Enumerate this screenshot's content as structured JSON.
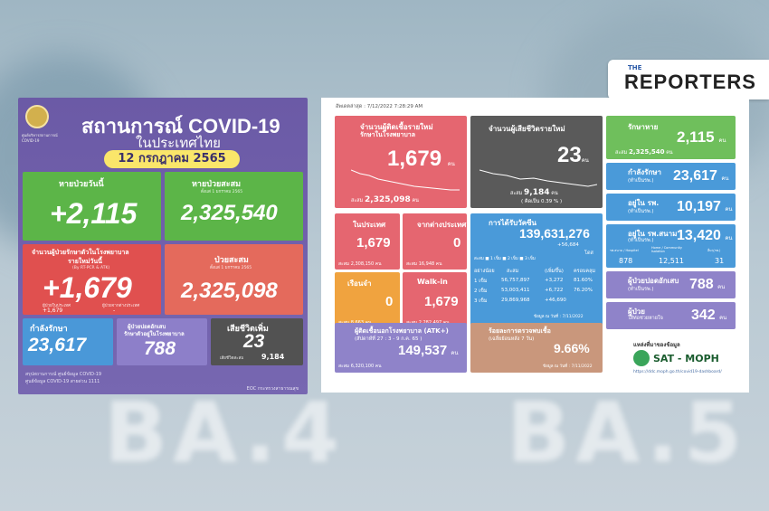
{
  "background": {
    "text_left": "BA.4",
    "text_right": "BA.5"
  },
  "logo": {
    "the": "THE",
    "name": "REPORTERS"
  },
  "left": {
    "crest_caption": "ศูนย์บริหารสถานการณ์ COVID-19",
    "title": "สถานการณ์ COVID-19",
    "subtitle": "ในประเทศไทย",
    "date": "12 กรกฎาคม 2565",
    "recovered_today": {
      "label": "หายป่วยวันนี้",
      "value": "+2,115"
    },
    "recovered_total": {
      "label": "หายป่วยสะสม",
      "note": "ตั้งแต่ 1 มกราคม 2565",
      "value": "2,325,540"
    },
    "new_hosp": {
      "label": "จำนวนผู้ป่วยรักษาตัวในโรงพยาบาล",
      "label2": "รายใหม่วันนี้",
      "note": "(By RT-PCR & ATK)",
      "value": "+1,679",
      "sub1_label": "ผู้ป่วยในประเทศ",
      "sub1": "+1,679",
      "sub2_label": "ผู้ป่วยจากต่างประเทศ",
      "sub2": "-"
    },
    "cum_cases": {
      "label": "ป่วยสะสม",
      "note": "ตั้งแต่ 1 มกราคม 2565",
      "value": "2,325,098"
    },
    "treating": {
      "label": "กำลังรักษา",
      "value": "23,617"
    },
    "atk_home": {
      "label": "ผู้ป่วยปอดอักเสบ",
      "label2": "รักษาตัวอยู่ในโรงพยาบาล",
      "value": "788"
    },
    "deaths": {
      "label": "เสียชีวิตเพิ่ม",
      "note": "เสียชีวิตสะสม",
      "value": "23",
      "cum": "9,184"
    },
    "footer1": "สรุปสถานการณ์ ศูนย์ข้อมูล COVID-19",
    "footer2": "ศูนย์ข้อมูล COVID-19   สายด่วน 1111",
    "footer3": "EOC กระทรวงสาธารณสุข"
  },
  "right": {
    "updated": "อัพเดตล่าสุด : 7/12/2022 7:28:29 AM",
    "case": {
      "title": "จำนวนผู้ติดเชื้อรายใหม่",
      "sub": "รักษาในโรงพยาบาล",
      "value": "1,679",
      "unit": "คน",
      "cum_label": "สะสม",
      "cum": "2,325,098",
      "cum_unit": "คน"
    },
    "death": {
      "title": "จำนวนผู้เสียชีวิตรายใหม่",
      "value": "23",
      "unit": "คน",
      "cum_label": "สะสม",
      "cum": "9,184",
      "cum_unit": "คน",
      "pct_label": "( คิดเป็น",
      "pct": "0.39 % )"
    },
    "heal": {
      "title": "รักษาหาย",
      "value": "2,115",
      "unit": "คน",
      "cum_label": "สะสม",
      "cum": "2,325,540",
      "cum_unit": "คน"
    },
    "treat": {
      "title": "กำลังรักษา",
      "sub": "(ทำเป็นรพ.)",
      "value": "23,617",
      "unit": "คน"
    },
    "hosp": {
      "title": "อยู่ใน รพ.",
      "sub": "(ทำเป็นรพ.)",
      "value": "10,197",
      "unit": "คน"
    },
    "field": {
      "title": "อยู่ใน รพ.สนาม",
      "sub": "(ทำเป็นรพ.)",
      "value": "13,420",
      "unit": "คน",
      "c1_label": "รพ.สนาม / Hospitel",
      "c1": "878",
      "c2_label": "Home / Community Isolation",
      "c2": "12,511",
      "c3_label": "อื่นๆ(รพ.)",
      "c3": "31"
    },
    "atk": {
      "title": "ผู้ป่วยปอดอักเสบ",
      "sub": "(ทำเป็นรพ.)",
      "value": "788",
      "unit": "คน"
    },
    "home": {
      "title": "ผู้ป่วย",
      "sub": "ใส่ท่อช่วยหายใจ",
      "value": "342",
      "unit": "คน"
    },
    "dom": {
      "title": "ในประเทศ",
      "value": "1,679",
      "cum_label": "สะสม",
      "cum": "2,308,150",
      "cum_unit": "คน"
    },
    "imp": {
      "title": "จากต่างประเทศ",
      "value": "0",
      "cum_label": "สะสม",
      "cum": "16,948",
      "cum_unit": "คน"
    },
    "jail": {
      "title": "เรือนจำ",
      "value": "0",
      "cum_label": "สะสม",
      "cum": "8,663",
      "cum_unit": "คน"
    },
    "walk": {
      "title": "Walk-in",
      "value": "1,679",
      "cum_label": "สะสม",
      "cum": "2,282,497",
      "cum_unit": "คน"
    },
    "vac": {
      "title": "การได้รับวัคซีน",
      "value": "139,631,276",
      "plus": "+56,684",
      "unit": "โดส",
      "legend": "สะสม  ■ 1 เข็ม  ■ 2 เข็ม  ■ 3 เข็ม",
      "headers": [
        "อย่างน้อย",
        "สะสม",
        "(เพิ่มขึ้น)",
        "ครอบคลุม"
      ],
      "rows": [
        [
          "1 เข็ม",
          "56,757,897",
          "+3,272",
          "81.60%"
        ],
        [
          "2 เข็ม",
          "53,003,411",
          "+6,722",
          "76.20%"
        ],
        [
          "3 เข็ม",
          "29,869,968",
          "+46,690",
          ""
        ]
      ],
      "date": "ข้อมูล ณ วันที่ : 7/11/2022"
    },
    "atkpos": {
      "title": "ผู้ติดเชื้อนอกโรงพยาบาล (ATK+)",
      "sub": "(สัปดาห์ที่ 27 : 3 - 9 ก.ค. 65 )",
      "value": "149,537",
      "unit": "คน",
      "cum_label": "สะสม",
      "cum": "6,320,100",
      "cum_unit": "คน"
    },
    "pos": {
      "title": "ร้อยละการตรวจพบเชื้อ",
      "sub": "(เฉลี่ยย้อนหลัง 7 วัน)",
      "value": "9.66%",
      "date": "ข้อมูล ณ วันที่ : 7/11/2022"
    },
    "source_label": "แหล่งที่มาของข้อมูล",
    "sat": "SAT - MOPH",
    "url": "https://ddc.moph.go.th/covid19-dashboard/"
  }
}
